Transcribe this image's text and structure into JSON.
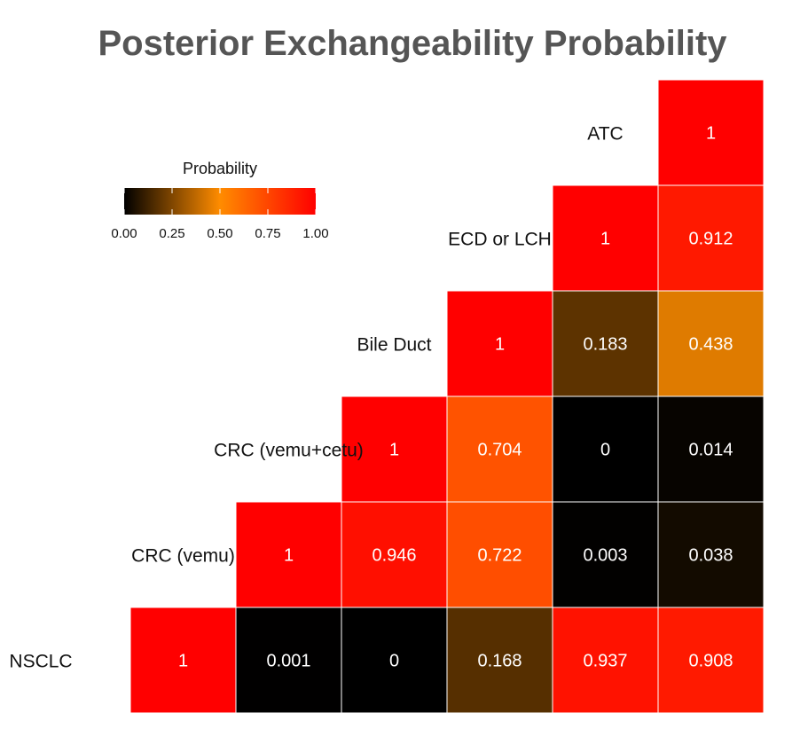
{
  "chart_data": {
    "type": "heatmap",
    "title": "Posterior Exchangeability Probability",
    "row_labels": [
      "ATC",
      "ECD or LCH",
      "Bile Duct",
      "CRC (vemu+cetu)",
      "CRC (vemu)",
      "NSCLC"
    ],
    "col_labels": [
      "NSCLC",
      "CRC (vemu)",
      "CRC (vemu+cetu)",
      "Bile Duct",
      "ECD or LCH",
      "ATC"
    ],
    "cells": [
      [
        null,
        null,
        null,
        null,
        null,
        1
      ],
      [
        null,
        null,
        null,
        null,
        1,
        0.912
      ],
      [
        null,
        null,
        null,
        1,
        0.183,
        0.438
      ],
      [
        null,
        null,
        1,
        0.704,
        0,
        0.014
      ],
      [
        null,
        1,
        0.946,
        0.722,
        0.003,
        0.038
      ],
      [
        1,
        0.001,
        0,
        0.168,
        0.937,
        0.908
      ]
    ],
    "cell_labels": [
      [
        null,
        null,
        null,
        null,
        null,
        "1"
      ],
      [
        null,
        null,
        null,
        null,
        "1",
        "0.912"
      ],
      [
        null,
        null,
        null,
        "1",
        "0.183",
        "0.438"
      ],
      [
        null,
        null,
        "1",
        "0.704",
        "0",
        "0.014"
      ],
      [
        null,
        "1",
        "0.946",
        "0.722",
        "0.003",
        "0.038"
      ],
      [
        "1",
        "0.001",
        "0",
        "0.168",
        "0.937",
        "0.908"
      ]
    ],
    "legend": {
      "title": "Probability",
      "range": [
        0,
        1
      ],
      "ticks": [
        0,
        0.25,
        0.5,
        0.75,
        1
      ],
      "tick_labels": [
        "0.00",
        "0.25",
        "0.50",
        "0.75",
        "1.00"
      ],
      "position": "top-left"
    },
    "color_scale": [
      "#000000",
      "#ff8c00",
      "#ff0000"
    ]
  }
}
